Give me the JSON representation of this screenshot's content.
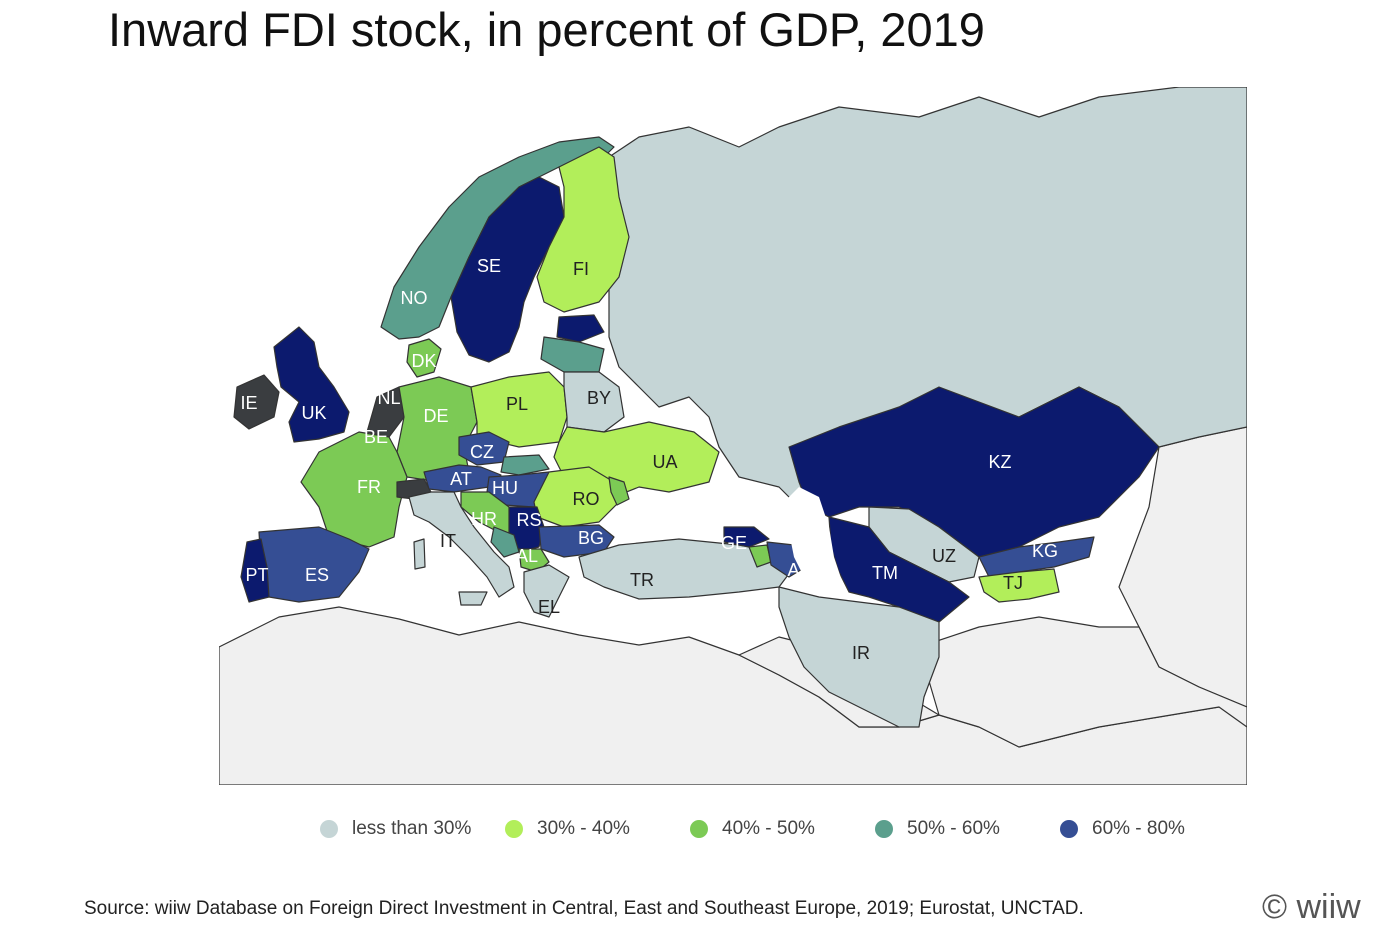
{
  "title": "Inward FDI stock, in percent of GDP, 2019",
  "legend": [
    {
      "label": "less than 30%",
      "color": "#c5d5d6"
    },
    {
      "label": "30% - 40%",
      "color": "#b2ee5a"
    },
    {
      "label": "40% - 50%",
      "color": "#7cca55"
    },
    {
      "label": "50% - 60%",
      "color": "#5b9f8d"
    },
    {
      "label": "60% - 80%",
      "color": "#354e94"
    }
  ],
  "colors": {
    "sea": "#ffffff",
    "other_land": "#f0f0f0",
    "border": "#333333",
    "above_80": "#0c1a6e",
    "dark_grey": "#3a3d40"
  },
  "countries": [
    {
      "code": "NO",
      "cls": "c50"
    },
    {
      "code": "SE",
      "cls": "above"
    },
    {
      "code": "FI",
      "cls": "c30"
    },
    {
      "code": "DK",
      "cls": "c40"
    },
    {
      "code": "UK",
      "cls": "above"
    },
    {
      "code": "IE",
      "cls": "dark"
    },
    {
      "code": "BE",
      "cls": "above"
    },
    {
      "code": "NL",
      "cls": "dark"
    },
    {
      "code": "DE",
      "cls": "c40"
    },
    {
      "code": "FR",
      "cls": "c40"
    },
    {
      "code": "PL",
      "cls": "c30"
    },
    {
      "code": "BY",
      "cls": "c0"
    },
    {
      "code": "UA",
      "cls": "c30"
    },
    {
      "code": "CZ",
      "cls": "c60"
    },
    {
      "code": "AT",
      "cls": "c60"
    },
    {
      "code": "HU",
      "cls": "c60"
    },
    {
      "code": "RO",
      "cls": "c30"
    },
    {
      "code": "HR",
      "cls": "c40"
    },
    {
      "code": "RS",
      "cls": "above"
    },
    {
      "code": "BG",
      "cls": "c60"
    },
    {
      "code": "AL",
      "cls": "c40"
    },
    {
      "code": "IT",
      "cls": "c0"
    },
    {
      "code": "ES",
      "cls": "c60"
    },
    {
      "code": "PT",
      "cls": "above"
    },
    {
      "code": "EL",
      "cls": "c0"
    },
    {
      "code": "TR",
      "cls": "c0"
    },
    {
      "code": "GE",
      "cls": "above"
    },
    {
      "code": "AZ",
      "cls": "c60"
    },
    {
      "code": "KZ",
      "cls": "above"
    },
    {
      "code": "UZ",
      "cls": "c0"
    },
    {
      "code": "TM",
      "cls": "above"
    },
    {
      "code": "KG",
      "cls": "c60"
    },
    {
      "code": "TJ",
      "cls": "c30"
    },
    {
      "code": "IR",
      "cls": "c0"
    }
  ],
  "source": "Source: wiiw Database on Foreign Direct Investment in Central, East and Southeast Europe, 2019; Eurostat, UNCTAD.",
  "copyright": "© wiiw"
}
